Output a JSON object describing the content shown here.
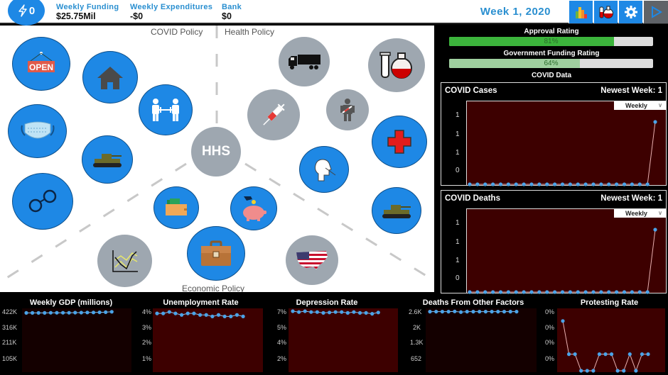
{
  "header": {
    "energy_value": "0",
    "stats": [
      {
        "label": "Weekly Funding",
        "value": "$25.75Mil"
      },
      {
        "label": "Weekly Expenditures",
        "value": "-$0"
      },
      {
        "label": "Bank",
        "value": "$0"
      }
    ],
    "week": "Week 1, 2020",
    "toolbar": [
      {
        "name": "charts-button",
        "icon": "bar-chart-icon"
      },
      {
        "name": "research-button",
        "icon": "lab-flask-icon"
      },
      {
        "name": "settings-button",
        "icon": "gear-icon"
      },
      {
        "name": "play-button",
        "icon": "play-icon"
      }
    ]
  },
  "map": {
    "sections": {
      "covid": "COVID Policy",
      "health": "Health Policy",
      "economic": "Economic Policy"
    },
    "center_label": "HHS",
    "policies": [
      {
        "id": "open-business",
        "icon": "open-sign-icon",
        "state": "active"
      },
      {
        "id": "stay-home",
        "icon": "house-icon",
        "state": "active"
      },
      {
        "id": "social-distancing",
        "icon": "social-distance-icon",
        "state": "active"
      },
      {
        "id": "face-masks",
        "icon": "face-mask-icon",
        "state": "active"
      },
      {
        "id": "military-covid",
        "icon": "tank-icon",
        "state": "active"
      },
      {
        "id": "handcuffs",
        "icon": "handcuffs-icon",
        "state": "active"
      },
      {
        "id": "supply-truck",
        "icon": "truck-icon",
        "state": "locked"
      },
      {
        "id": "lab-research",
        "icon": "lab-flask-icon",
        "state": "locked"
      },
      {
        "id": "vaccine",
        "icon": "syringe-icon",
        "state": "locked"
      },
      {
        "id": "injured-person",
        "icon": "injured-person-icon",
        "state": "locked"
      },
      {
        "id": "hospital",
        "icon": "red-cross-icon",
        "state": "active"
      },
      {
        "id": "testing",
        "icon": "nasal-swab-icon",
        "state": "active"
      },
      {
        "id": "military-health",
        "icon": "tank-icon",
        "state": "active"
      },
      {
        "id": "stimulus-wallet",
        "icon": "wallet-icon",
        "state": "active"
      },
      {
        "id": "savings",
        "icon": "piggy-bank-icon",
        "state": "active"
      },
      {
        "id": "jobs",
        "icon": "briefcase-icon",
        "state": "active"
      },
      {
        "id": "stock-market",
        "icon": "line-chart-icon",
        "state": "locked"
      },
      {
        "id": "national",
        "icon": "usa-flag-map-icon",
        "state": "locked"
      }
    ]
  },
  "right_panel": {
    "approval": {
      "label": "Approval Rating",
      "value": 81,
      "text": "81%",
      "color": "#3cb43c"
    },
    "funding": {
      "label": "Government Funding Rating",
      "value": 64,
      "text": "64%",
      "color": "#9fd09f"
    },
    "covid_label": "COVID Data",
    "cases": {
      "title": "COVID Cases",
      "newest": "Newest Week: 1",
      "dropdown": "Weekly",
      "yticks": [
        "1",
        "1",
        "1",
        "0"
      ]
    },
    "deaths": {
      "title": "COVID Deaths",
      "newest": "Newest Week: 1",
      "dropdown": "Weekly",
      "yticks": [
        "1",
        "1",
        "1",
        "0"
      ]
    }
  },
  "chart_data": [
    {
      "type": "line",
      "title": "COVID Cases",
      "x": [
        1,
        2,
        3,
        4,
        5,
        6,
        7,
        8,
        9,
        10,
        11,
        12,
        13,
        14,
        15,
        16,
        17,
        18,
        19,
        20,
        21,
        22,
        23,
        24,
        25
      ],
      "values": [
        0,
        0,
        0,
        0,
        0,
        0,
        0,
        0,
        0,
        0,
        0,
        0,
        0,
        0,
        0,
        0,
        0,
        0,
        0,
        0,
        0,
        0,
        0,
        0,
        1
      ],
      "yticks": [
        "1",
        "1",
        "1",
        "0"
      ],
      "dropdown": "Weekly"
    },
    {
      "type": "line",
      "title": "COVID Deaths",
      "x": [
        1,
        2,
        3,
        4,
        5,
        6,
        7,
        8,
        9,
        10,
        11,
        12,
        13,
        14,
        15,
        16,
        17,
        18,
        19,
        20,
        21,
        22,
        23,
        24,
        25
      ],
      "values": [
        0,
        0,
        0,
        0,
        0,
        0,
        0,
        0,
        0,
        0,
        0,
        0,
        0,
        0,
        0,
        0,
        0,
        0,
        0,
        0,
        0,
        0,
        0,
        0,
        1
      ],
      "yticks": [
        "1",
        "1",
        "1",
        "0"
      ],
      "dropdown": "Weekly"
    },
    {
      "type": "line",
      "title": "Weekly GDP (millions)",
      "yticks": [
        "422K",
        "316K",
        "211K",
        "105K"
      ],
      "values": [
        410,
        410,
        410,
        410,
        411,
        411,
        411,
        411,
        412,
        412,
        413,
        413,
        414,
        415,
        418
      ],
      "ylim": [
        0,
        422
      ]
    },
    {
      "type": "line",
      "title": "Unemployment Rate",
      "yticks": [
        "4%",
        "3%",
        "2%",
        "1%"
      ],
      "values": [
        3.85,
        3.85,
        3.95,
        3.85,
        3.75,
        3.85,
        3.85,
        3.75,
        3.75,
        3.65,
        3.75,
        3.65,
        3.65,
        3.75,
        3.65
      ],
      "ylim": [
        0,
        4
      ]
    },
    {
      "type": "line",
      "title": "Depression Rate",
      "yticks": [
        "7%",
        "5%",
        "4%",
        "2%"
      ],
      "values": [
        7.0,
        6.9,
        7.0,
        6.9,
        6.9,
        6.8,
        6.85,
        6.9,
        6.9,
        6.8,
        6.9,
        6.8,
        6.8,
        6.7,
        6.85
      ],
      "ylim": [
        0,
        7
      ]
    },
    {
      "type": "line",
      "title": "Deaths From Other Factors",
      "yticks": [
        "2.6K",
        "2K",
        "1.3K",
        "652"
      ],
      "values": [
        2590,
        2590,
        2590,
        2590,
        2600,
        2570,
        2590,
        2590,
        2590,
        2590,
        2590,
        2590,
        2590,
        2590,
        2590
      ],
      "ylim": [
        0,
        2610
      ]
    },
    {
      "type": "line",
      "title": "Protesting Rate",
      "yticks": [
        "0%",
        "0%",
        "0%",
        "0%"
      ],
      "values": [
        0.9,
        0.3,
        0.3,
        0,
        0,
        0,
        0.3,
        0.3,
        0.3,
        0,
        0,
        0.3,
        0,
        0.3,
        0.3
      ],
      "ylim": [
        0,
        1
      ]
    }
  ],
  "colors": {
    "accent_blue": "#1e88e5",
    "locked_grey": "#9ea7b0",
    "plot_bg": "#3d0000",
    "plot_bg_dark": "#140000",
    "point": "#4aa3e8"
  }
}
